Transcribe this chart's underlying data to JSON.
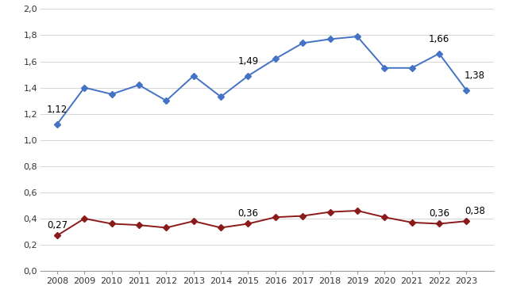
{
  "years": [
    2008,
    2009,
    2010,
    2011,
    2012,
    2013,
    2014,
    2015,
    2016,
    2017,
    2018,
    2019,
    2020,
    2021,
    2022,
    2023
  ],
  "blue_values": [
    1.12,
    1.4,
    1.35,
    1.42,
    1.3,
    1.49,
    1.33,
    1.49,
    1.62,
    1.74,
    1.77,
    1.79,
    1.55,
    1.55,
    1.66,
    1.38
  ],
  "red_values": [
    0.27,
    0.4,
    0.36,
    0.35,
    0.33,
    0.38,
    0.33,
    0.36,
    0.41,
    0.42,
    0.45,
    0.46,
    0.41,
    0.37,
    0.36,
    0.38
  ],
  "blue_color": "#4472C4",
  "red_color": "#8B1A1A",
  "blue_labeled": {
    "2008": 1.12,
    "2015": 1.49,
    "2022": 1.66,
    "2023": 1.38
  },
  "red_labeled": {
    "2008": 0.27,
    "2015": 0.36,
    "2022": 0.36,
    "2023": 0.38
  },
  "ylim": [
    0.0,
    2.0
  ],
  "yticks": [
    0.0,
    0.2,
    0.4,
    0.6,
    0.8,
    1.0,
    1.2,
    1.4,
    1.6,
    1.8,
    2.0
  ],
  "bg_color": "#FFFFFF",
  "marker": "D",
  "marker_size": 4,
  "line_width": 1.4,
  "grid_color": "#D0D0D0",
  "label_fontsize": 8.5,
  "tick_fontsize": 8
}
